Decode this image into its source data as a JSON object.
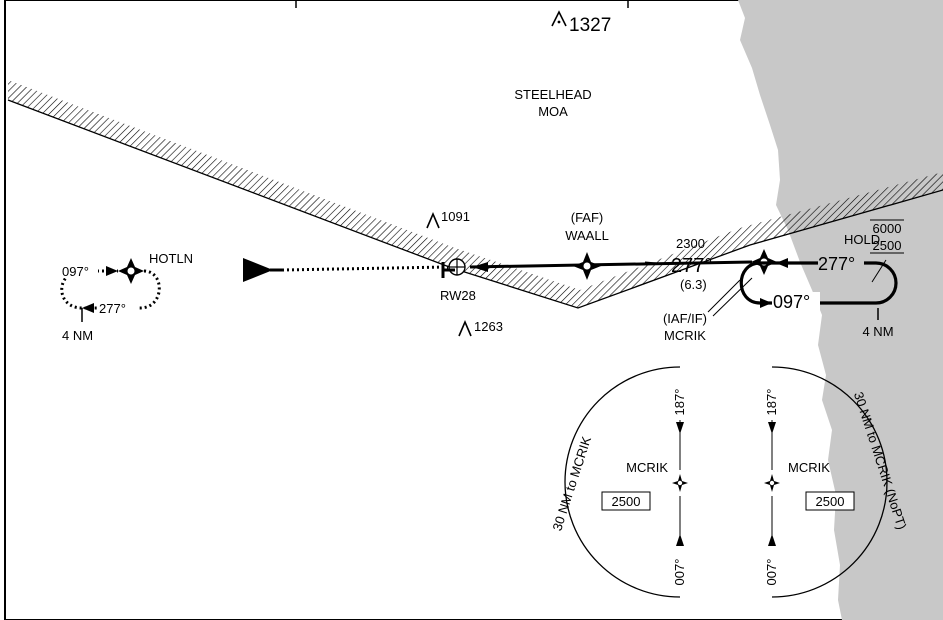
{
  "terrain": {
    "obstacle_top": "1327",
    "obstacle_left": "1091",
    "obstacle_bottom": "1263"
  },
  "airspace": {
    "moa_name": "STEELHEAD",
    "moa_type": "MOA"
  },
  "fixes": {
    "faf_role": "(FAF)",
    "faf_name": "WAALL",
    "iaf_role": "(IAF/IF)",
    "iaf_name": "MCRIK",
    "missed_hold_fix": "HOTLN",
    "runway": "RW28"
  },
  "approach": {
    "course_main": "277°",
    "altitude_2300": "2300",
    "distance": "(6.3)"
  },
  "hold_right": {
    "label": "HOLD",
    "alt_max": "6000",
    "alt_min": "2500",
    "inbound": "277°",
    "outbound": "097°",
    "leg": "4 NM"
  },
  "hold_left": {
    "outbound": "097°",
    "inbound": "277°",
    "leg": "4 NM"
  },
  "taa_left": {
    "arc_label": "30 NM to MCRIK",
    "fix": "MCRIK",
    "altitude": "2500",
    "bearing_top": "187°",
    "bearing_bottom": "007°"
  },
  "taa_right": {
    "arc_label": "30 NM to MCRIK (NoPT)",
    "fix": "MCRIK",
    "altitude": "2500",
    "bearing_top": "187°",
    "bearing_bottom": "007°"
  },
  "colors": {
    "land": "#c8c8c8",
    "ink": "#000000"
  }
}
